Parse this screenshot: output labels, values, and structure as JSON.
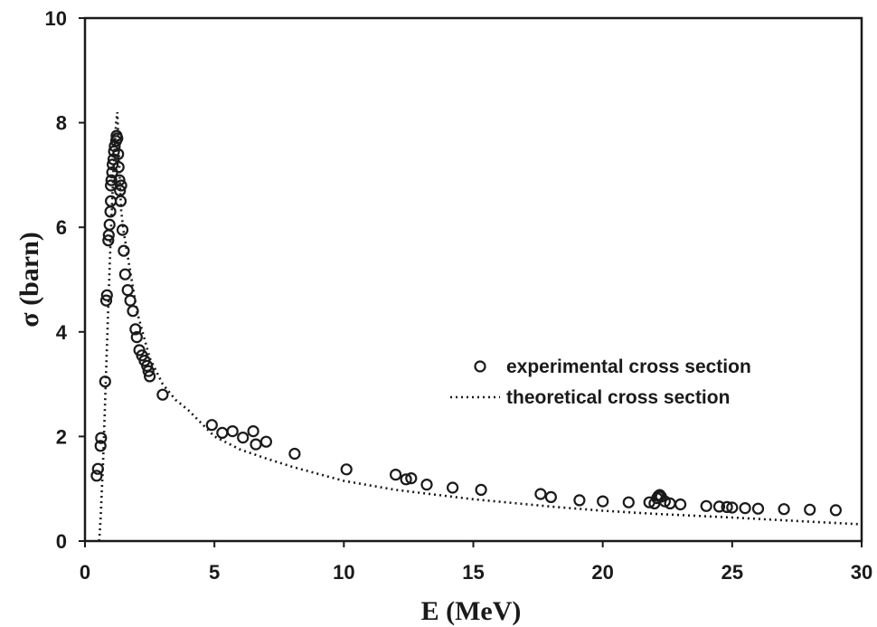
{
  "chart_data": {
    "type": "scatter",
    "xlabel": "E (MeV)",
    "ylabel": "σ (barn)",
    "xlim": [
      0,
      30
    ],
    "ylim": [
      0,
      10
    ],
    "xticks": [
      0,
      5,
      10,
      15,
      20,
      25,
      30
    ],
    "yticks": [
      0,
      2,
      4,
      6,
      8,
      10
    ],
    "grid": false,
    "legend_position": "right",
    "series": [
      {
        "name": "experimental cross section",
        "kind": "markers",
        "marker": "open-circle",
        "points": [
          [
            0.45,
            1.25
          ],
          [
            0.5,
            1.38
          ],
          [
            0.6,
            1.82
          ],
          [
            0.62,
            1.97
          ],
          [
            0.78,
            3.05
          ],
          [
            0.82,
            4.6
          ],
          [
            0.85,
            4.7
          ],
          [
            0.9,
            5.75
          ],
          [
            0.92,
            5.85
          ],
          [
            0.95,
            6.05
          ],
          [
            0.98,
            6.3
          ],
          [
            1.0,
            6.5
          ],
          [
            1.0,
            6.8
          ],
          [
            1.02,
            6.9
          ],
          [
            1.05,
            7.05
          ],
          [
            1.07,
            7.2
          ],
          [
            1.1,
            7.3
          ],
          [
            1.12,
            7.45
          ],
          [
            1.15,
            7.55
          ],
          [
            1.2,
            7.65
          ],
          [
            1.22,
            7.75
          ],
          [
            1.25,
            7.7
          ],
          [
            1.28,
            7.4
          ],
          [
            1.3,
            7.15
          ],
          [
            1.33,
            6.9
          ],
          [
            1.35,
            6.7
          ],
          [
            1.38,
            6.5
          ],
          [
            1.4,
            6.8
          ],
          [
            1.45,
            5.95
          ],
          [
            1.5,
            5.55
          ],
          [
            1.55,
            5.1
          ],
          [
            1.65,
            4.8
          ],
          [
            1.75,
            4.6
          ],
          [
            1.85,
            4.4
          ],
          [
            1.95,
            4.05
          ],
          [
            2.0,
            3.9
          ],
          [
            2.1,
            3.65
          ],
          [
            2.2,
            3.55
          ],
          [
            2.3,
            3.45
          ],
          [
            2.4,
            3.35
          ],
          [
            2.45,
            3.25
          ],
          [
            2.5,
            3.15
          ],
          [
            3.0,
            2.8
          ],
          [
            4.9,
            2.22
          ],
          [
            5.3,
            2.07
          ],
          [
            5.7,
            2.1
          ],
          [
            6.1,
            1.98
          ],
          [
            6.5,
            2.1
          ],
          [
            6.6,
            1.85
          ],
          [
            7.0,
            1.9
          ],
          [
            8.1,
            1.67
          ],
          [
            10.1,
            1.37
          ],
          [
            12.0,
            1.27
          ],
          [
            12.4,
            1.18
          ],
          [
            12.6,
            1.2
          ],
          [
            13.2,
            1.08
          ],
          [
            14.2,
            1.02
          ],
          [
            15.3,
            0.98
          ],
          [
            17.6,
            0.9
          ],
          [
            18.0,
            0.84
          ],
          [
            19.1,
            0.78
          ],
          [
            20.0,
            0.76
          ],
          [
            21.0,
            0.74
          ],
          [
            21.8,
            0.74
          ],
          [
            22.0,
            0.72
          ],
          [
            22.1,
            0.82
          ],
          [
            22.15,
            0.86
          ],
          [
            22.2,
            0.88
          ],
          [
            22.25,
            0.85
          ],
          [
            22.4,
            0.76
          ],
          [
            22.6,
            0.72
          ],
          [
            23.0,
            0.7
          ],
          [
            24.0,
            0.67
          ],
          [
            24.5,
            0.66
          ],
          [
            24.8,
            0.65
          ],
          [
            25.0,
            0.64
          ],
          [
            25.5,
            0.63
          ],
          [
            26.0,
            0.62
          ],
          [
            27.0,
            0.61
          ],
          [
            28.0,
            0.6
          ],
          [
            29.0,
            0.59
          ]
        ]
      },
      {
        "name": "theoretical cross section",
        "kind": "line",
        "style": "dotted",
        "points": [
          [
            0.55,
            0.0
          ],
          [
            0.6,
            0.4
          ],
          [
            0.7,
            1.5
          ],
          [
            0.8,
            3.0
          ],
          [
            0.9,
            4.5
          ],
          [
            1.0,
            5.9
          ],
          [
            1.1,
            7.1
          ],
          [
            1.2,
            8.0
          ],
          [
            1.25,
            8.2
          ],
          [
            1.3,
            7.6
          ],
          [
            1.35,
            6.8
          ],
          [
            1.4,
            6.3
          ],
          [
            1.5,
            5.9
          ],
          [
            1.7,
            5.3
          ],
          [
            2.0,
            4.4
          ],
          [
            2.5,
            3.5
          ],
          [
            3.0,
            3.0
          ],
          [
            3.5,
            2.7
          ],
          [
            4.0,
            2.5
          ],
          [
            5.0,
            2.0
          ],
          [
            6.0,
            1.75
          ],
          [
            7.0,
            1.58
          ],
          [
            8.0,
            1.42
          ],
          [
            10.0,
            1.15
          ],
          [
            12.0,
            0.98
          ],
          [
            15.0,
            0.8
          ],
          [
            18.0,
            0.66
          ],
          [
            20.0,
            0.58
          ],
          [
            22.0,
            0.52
          ],
          [
            25.0,
            0.45
          ],
          [
            28.0,
            0.37
          ],
          [
            30.0,
            0.32
          ]
        ]
      }
    ]
  }
}
